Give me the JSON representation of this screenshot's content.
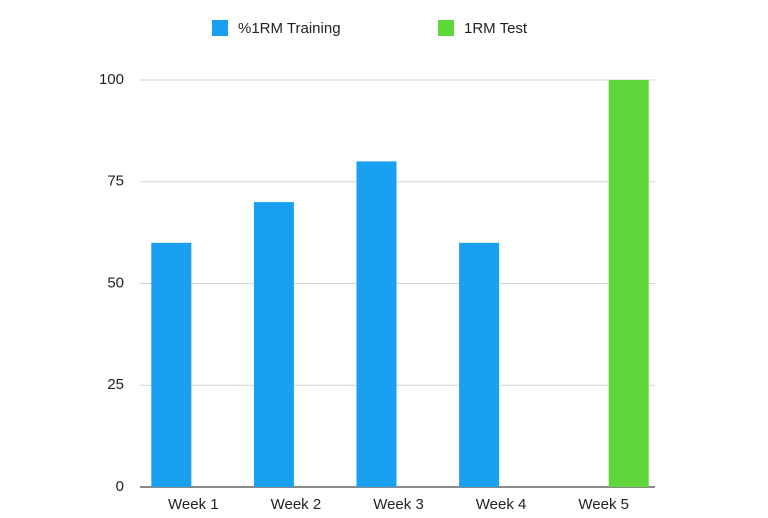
{
  "chart_data": {
    "type": "bar",
    "categories": [
      "Week 1",
      "Week 2",
      "Week 3",
      "Week 4",
      "Week 5"
    ],
    "series": [
      {
        "name": "%1RM Training",
        "color": "#1aa0f0",
        "values": [
          60,
          70,
          80,
          60,
          null
        ]
      },
      {
        "name": "1RM Test",
        "color": "#5fd63a",
        "values": [
          null,
          null,
          null,
          null,
          100
        ]
      }
    ],
    "ylim": [
      0,
      100
    ],
    "yticks": [
      0,
      25,
      50,
      75,
      100
    ],
    "grid": true,
    "legend": "top"
  }
}
